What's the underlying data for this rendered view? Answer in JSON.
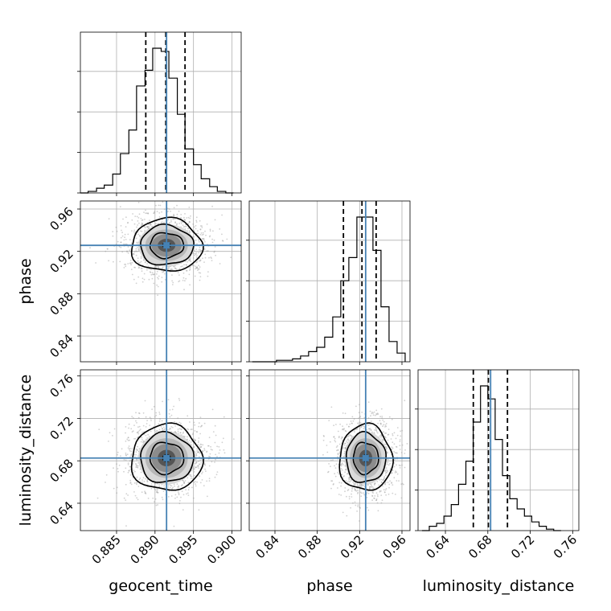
{
  "colors": {
    "truth": "#4682b4",
    "histogram": "#000000",
    "grid": "#b0b0b0",
    "scatter": "#9a9a9a"
  },
  "chart_data": {
    "type": "corner",
    "grid": true,
    "parameters": [
      {
        "name": "geocent_time",
        "label": "geocent_time",
        "range": [
          0.8803,
          0.9012
        ],
        "ticks": [
          0.885,
          0.89,
          0.895,
          0.9
        ],
        "tick_labels": [
          "0.885",
          "0.890",
          "0.895",
          "0.900"
        ],
        "truth": 0.8915,
        "quantiles": [
          0.8888,
          0.8914,
          0.8939
        ]
      },
      {
        "name": "phase",
        "label": "phase",
        "range": [
          0.8157,
          0.9676
        ],
        "ticks": [
          0.84,
          0.88,
          0.92,
          0.96
        ],
        "tick_labels": [
          "0.84",
          "0.88",
          "0.92",
          "0.96"
        ],
        "truth": 0.9257,
        "quantiles": [
          0.9047,
          0.9222,
          0.9356
        ]
      },
      {
        "name": "luminosity_distance",
        "label": "luminosity_distance",
        "range": [
          0.6142,
          0.7658
        ],
        "ticks": [
          0.64,
          0.68,
          0.72,
          0.76
        ],
        "tick_labels": [
          "0.64",
          "0.68",
          "0.72",
          "0.76"
        ],
        "truth": 0.6826,
        "quantiles": [
          0.6663,
          0.6805,
          0.6985
        ]
      }
    ],
    "histograms": [
      {
        "param": "geocent_time",
        "bin_edges": [
          0.8803,
          0.8813,
          0.8824,
          0.8834,
          0.8845,
          0.8855,
          0.8866,
          0.8876,
          0.8887,
          0.8897,
          0.8908,
          0.8918,
          0.8929,
          0.8939,
          0.895,
          0.896,
          0.8971,
          0.8981,
          0.8992,
          0.9002
        ],
        "counts": [
          0,
          1,
          3,
          5,
          12,
          25,
          40,
          68,
          78,
          92,
          90,
          73,
          50,
          28,
          18,
          9,
          4,
          1,
          0
        ]
      },
      {
        "param": "phase",
        "bin_edges": [
          0.8186,
          0.8262,
          0.8338,
          0.8414,
          0.849,
          0.8566,
          0.8642,
          0.8718,
          0.8794,
          0.887,
          0.8946,
          0.9022,
          0.9098,
          0.9174,
          0.925,
          0.9326,
          0.9402,
          0.9478,
          0.9554,
          0.963
        ],
        "counts": [
          0,
          0,
          0,
          1,
          1,
          2,
          4,
          7,
          10,
          17,
          31,
          56,
          72,
          100,
          100,
          77,
          38,
          14,
          6
        ]
      },
      {
        "param": "luminosity_distance",
        "bin_edges": [
          0.6179,
          0.6248,
          0.6317,
          0.6386,
          0.6455,
          0.6524,
          0.6593,
          0.6662,
          0.6731,
          0.68,
          0.6869,
          0.6938,
          0.7007,
          0.7076,
          0.7145,
          0.7214,
          0.7283,
          0.7352,
          0.7421,
          0.749
        ],
        "counts": [
          0,
          3,
          5,
          10,
          18,
          32,
          48,
          75,
          100,
          91,
          63,
          38,
          22,
          15,
          10,
          6,
          3,
          1,
          0
        ]
      }
    ],
    "panels_2d": [
      {
        "x": "geocent_time",
        "y": "phase",
        "center": [
          0.8915,
          0.9257
        ],
        "sd": [
          0.0023,
          0.0125
        ],
        "contour_levels": [
          "1-sigma",
          "1.5-sigma",
          "2-sigma"
        ]
      },
      {
        "x": "geocent_time",
        "y": "luminosity_distance",
        "center": [
          0.8915,
          0.6826
        ],
        "sd": [
          0.0023,
          0.0156
        ],
        "contour_levels": [
          "1-sigma",
          "1.5-sigma",
          "2-sigma"
        ]
      },
      {
        "x": "phase",
        "y": "luminosity_distance",
        "center": [
          0.9257,
          0.6826
        ],
        "sd": [
          0.0125,
          0.0156
        ],
        "contour_levels": [
          "1-sigma",
          "1.5-sigma",
          "2-sigma"
        ]
      }
    ]
  }
}
